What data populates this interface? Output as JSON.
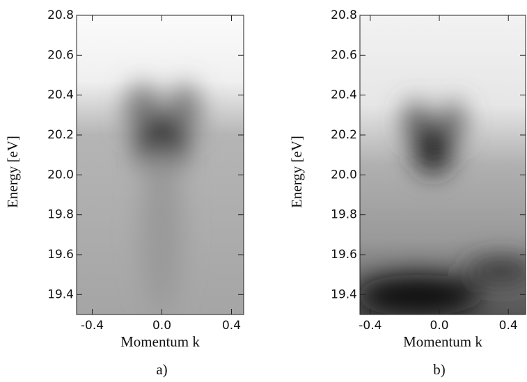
{
  "chart_data": [
    {
      "type": "heatmap",
      "xlabel": "Momentum k",
      "ylabel": "Energy [eV]",
      "panel_label": "a)",
      "xlim": [
        -0.49,
        0.47
      ],
      "ylim": [
        19.3,
        20.8
      ],
      "xticks": [
        {
          "value": -0.4,
          "label": "-0.4"
        },
        {
          "value": 0,
          "label": "0.0"
        },
        {
          "value": 0.4,
          "label": "0.4"
        }
      ],
      "yticks": [
        {
          "value": 19.4,
          "label": "19.4"
        },
        {
          "value": 19.6,
          "label": "19.6"
        },
        {
          "value": 19.8,
          "label": "19.8"
        },
        {
          "value": 20,
          "label": "20.0"
        },
        {
          "value": 20.2,
          "label": "20.2"
        },
        {
          "value": 20.4,
          "label": "20.4"
        },
        {
          "value": 20.6,
          "label": "20.6"
        },
        {
          "value": 20.8,
          "label": "20.8"
        }
      ]
    },
    {
      "type": "heatmap",
      "xlabel": "Momentum k",
      "ylabel": "Energy [eV]",
      "panel_label": "b)",
      "xlim": [
        -0.46,
        0.5
      ],
      "ylim": [
        19.3,
        20.8
      ],
      "xticks": [
        {
          "value": -0.4,
          "label": "-0.4"
        },
        {
          "value": 0,
          "label": "0.0"
        },
        {
          "value": 0.4,
          "label": "0.4"
        }
      ],
      "yticks": [
        {
          "value": 19.4,
          "label": "19.4"
        },
        {
          "value": 19.6,
          "label": "19.6"
        },
        {
          "value": 19.8,
          "label": "19.8"
        },
        {
          "value": 20,
          "label": "20.0"
        },
        {
          "value": 20.2,
          "label": "20.2"
        },
        {
          "value": 20.4,
          "label": "20.4"
        },
        {
          "value": 20.6,
          "label": "20.6"
        },
        {
          "value": 20.8,
          "label": "20.8"
        }
      ]
    }
  ]
}
